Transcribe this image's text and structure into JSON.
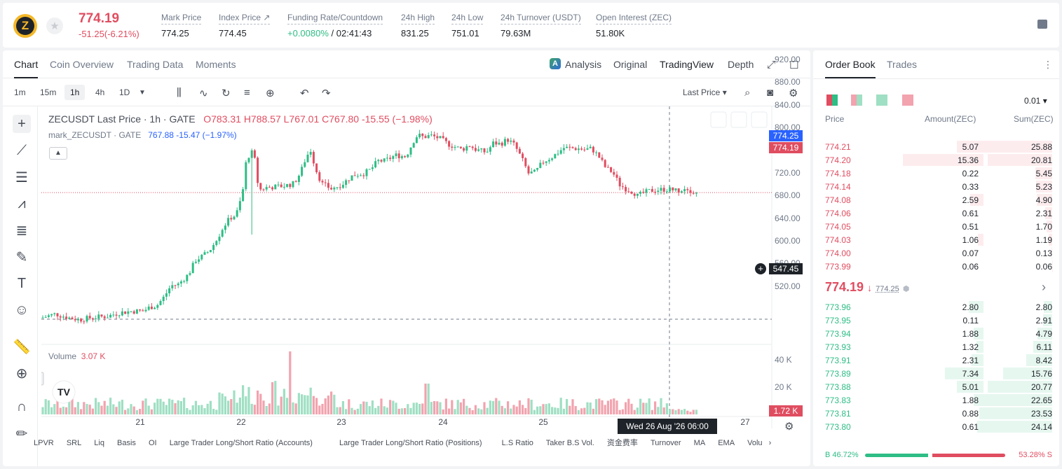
{
  "ticker": {
    "last_price": "774.19",
    "change": "-51.25(-6.21%)"
  },
  "stats": [
    {
      "label": "Mark Price",
      "value": "774.25"
    },
    {
      "label": "Index Price ↗",
      "value": "774.45"
    },
    {
      "label": "Funding Rate/Countdown",
      "value_green": "+0.0080%",
      "value": " / 02:41:43"
    },
    {
      "label": "24h High",
      "value": "831.25"
    },
    {
      "label": "24h Low",
      "value": "751.01"
    },
    {
      "label": "24h Turnover (USDT)",
      "value": "79.63M"
    },
    {
      "label": "Open Interest (ZEC)",
      "value": "51.80K"
    }
  ],
  "chart_tabs": [
    "Chart",
    "Coin Overview",
    "Trading Data",
    "Moments"
  ],
  "view_tabs": {
    "analysis": "Analysis",
    "original": "Original",
    "tradingview": "TradingView",
    "depth": "Depth"
  },
  "intervals": [
    "1m",
    "15m",
    "1h",
    "4h",
    "1D"
  ],
  "price_type": "Last Price ▾",
  "legend": {
    "symbol": "ZECUSDT Last Price · 1h · GATE",
    "o": "O783.31",
    "h": "H788.57",
    "l": "L767.01",
    "c": "C767.80",
    "chg": "-15.55 (−1.98%)",
    "mark": "mark_ZECUSDT · GATE",
    "mark_val": "767.88",
    "mark_chg": "-15.47 (−1.97%)"
  },
  "volume": {
    "label": "Volume",
    "value": "3.07 K",
    "tag": "1.72 K",
    "ticks": [
      "40 K",
      "20 K"
    ]
  },
  "tags": {
    "mark": "774.25",
    "last": "774.19",
    "cross": "547.45"
  },
  "crosshair_time": "Wed 26 Aug '26   06:00",
  "x_labels": [
    "21",
    "22",
    "23",
    "24",
    "25",
    "27"
  ],
  "indicators": [
    "LPVR",
    "SRL",
    "Liq",
    "Basis",
    "OI",
    "Large Trader Long/Short Ratio (Accounts)",
    "Large Trader Long/Short Ratio (Positions)",
    "L.S Ratio",
    "Taker B.S Vol.",
    "资金费率",
    "Turnover",
    "MA",
    "EMA",
    "Volu"
  ],
  "chart_data": {
    "type": "candlestick",
    "symbol": "ZECUSDT",
    "interval": "1h",
    "y_ticks": [
      920,
      880,
      840,
      800,
      760,
      720,
      680,
      640,
      600,
      560,
      520
    ],
    "ylim": [
      505,
      925
    ],
    "x": [
      "21",
      "22",
      "23",
      "24",
      "25",
      "26",
      "27"
    ],
    "path": [
      [
        0,
        553
      ],
      [
        20,
        560
      ],
      [
        40,
        553
      ],
      [
        55,
        550
      ],
      [
        75,
        554
      ],
      [
        95,
        556
      ],
      [
        110,
        562
      ],
      [
        130,
        565
      ],
      [
        145,
        565
      ],
      [
        155,
        572
      ],
      [
        165,
        575
      ],
      [
        175,
        590
      ],
      [
        185,
        610
      ],
      [
        195,
        612
      ],
      [
        210,
        630
      ],
      [
        220,
        655
      ],
      [
        230,
        662
      ],
      [
        240,
        672
      ],
      [
        250,
        690
      ],
      [
        260,
        715
      ],
      [
        270,
        730
      ],
      [
        278,
        735
      ],
      [
        282,
        752
      ],
      [
        287,
        770
      ],
      [
        290,
        818
      ],
      [
        295,
        838
      ],
      [
        300,
        845
      ],
      [
        305,
        830
      ],
      [
        310,
        778
      ],
      [
        320,
        783
      ],
      [
        340,
        785
      ],
      [
        350,
        787
      ],
      [
        360,
        790
      ],
      [
        370,
        810
      ],
      [
        378,
        838
      ],
      [
        385,
        850
      ],
      [
        390,
        820
      ],
      [
        400,
        790
      ],
      [
        415,
        780
      ],
      [
        430,
        790
      ],
      [
        445,
        805
      ],
      [
        460,
        808
      ],
      [
        470,
        815
      ],
      [
        480,
        830
      ],
      [
        490,
        830
      ],
      [
        505,
        840
      ],
      [
        520,
        838
      ],
      [
        525,
        850
      ],
      [
        532,
        868
      ],
      [
        537,
        876
      ],
      [
        545,
        872
      ],
      [
        555,
        875
      ],
      [
        568,
        870
      ],
      [
        580,
        860
      ],
      [
        600,
        850
      ],
      [
        610,
        858
      ],
      [
        620,
        850
      ],
      [
        635,
        845
      ],
      [
        645,
        862
      ],
      [
        655,
        860
      ],
      [
        665,
        868
      ],
      [
        675,
        858
      ],
      [
        685,
        835
      ],
      [
        695,
        808
      ],
      [
        705,
        810
      ],
      [
        715,
        828
      ],
      [
        730,
        838
      ],
      [
        745,
        853
      ],
      [
        765,
        852
      ],
      [
        775,
        850
      ],
      [
        785,
        852
      ],
      [
        795,
        838
      ],
      [
        805,
        818
      ],
      [
        815,
        810
      ],
      [
        825,
        788
      ],
      [
        835,
        780
      ],
      [
        845,
        775
      ],
      [
        850,
        768
      ],
      [
        860,
        774
      ],
      [
        870,
        778
      ],
      [
        890,
        780
      ],
      [
        910,
        778
      ],
      [
        920,
        784
      ],
      [
        930,
        775
      ],
      [
        935,
        772
      ]
    ],
    "mark_price": 774.25,
    "last_price": 774.19,
    "volume_ylim": [
      0,
      45000
    ]
  },
  "orderbook": {
    "tabs": [
      "Order Book",
      "Trades"
    ],
    "precision": "0.01 ▾",
    "headers": [
      "Price",
      "Amount(ZEC)",
      "Sum(ZEC)"
    ],
    "asks": [
      [
        "774.21",
        "5.07",
        "25.88"
      ],
      [
        "774.20",
        "15.36",
        "20.81"
      ],
      [
        "774.18",
        "0.22",
        "5.45"
      ],
      [
        "774.14",
        "0.33",
        "5.23"
      ],
      [
        "774.08",
        "2.59",
        "4.90"
      ],
      [
        "774.06",
        "0.61",
        "2.31"
      ],
      [
        "774.05",
        "0.51",
        "1.70"
      ],
      [
        "774.03",
        "1.06",
        "1.19"
      ],
      [
        "774.00",
        "0.07",
        "0.13"
      ],
      [
        "773.99",
        "0.06",
        "0.06"
      ]
    ],
    "mid_price": "774.19",
    "mid_mark": "774.25",
    "bids": [
      [
        "773.96",
        "2.80",
        "2.80"
      ],
      [
        "773.95",
        "0.11",
        "2.91"
      ],
      [
        "773.94",
        "1.88",
        "4.79"
      ],
      [
        "773.93",
        "1.32",
        "6.11"
      ],
      [
        "773.91",
        "2.31",
        "8.42"
      ],
      [
        "773.89",
        "7.34",
        "15.76"
      ],
      [
        "773.88",
        "5.01",
        "20.77"
      ],
      [
        "773.83",
        "1.88",
        "22.65"
      ],
      [
        "773.81",
        "0.88",
        "23.53"
      ],
      [
        "773.80",
        "0.61",
        "24.14"
      ]
    ],
    "buy_ratio": "B 46.72%",
    "sell_ratio": "53.28% S",
    "buy_pct": 46.72
  },
  "colors": {
    "up": "#2ebd85",
    "down": "#e04d60",
    "up_vol": "#9fdfc3",
    "down_vol": "#f2a3ae"
  }
}
